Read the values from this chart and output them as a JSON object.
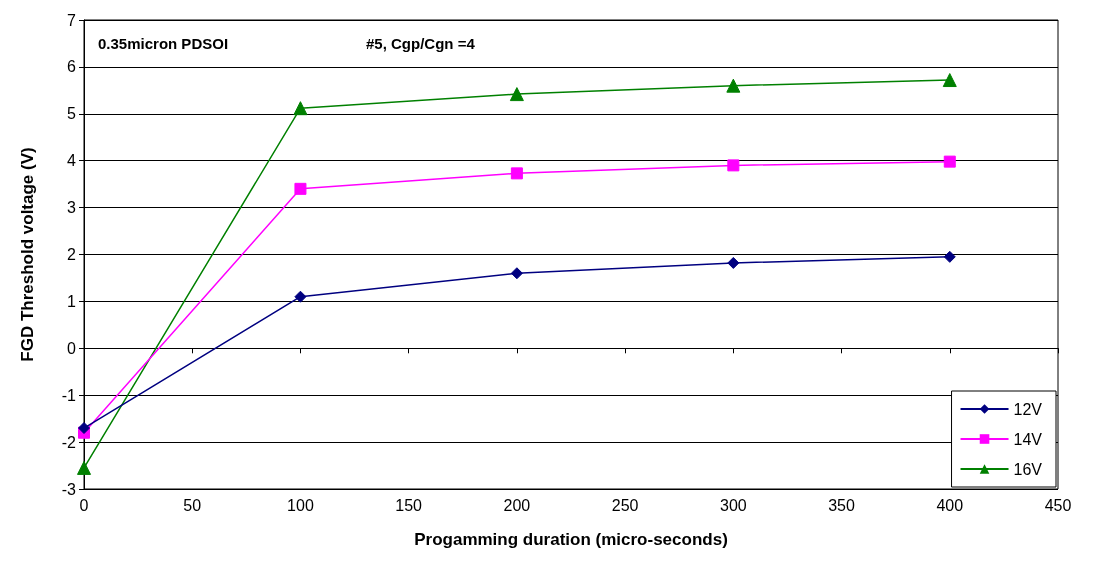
{
  "chart_data": {
    "type": "line",
    "xlabel": "Progamming duration (micro-seconds)",
    "ylabel": "FGD Threshold voltage (V)",
    "annotations": [
      "0.35micron PDSOI",
      "#5, Cgp/Cgn =4"
    ],
    "x": [
      0,
      100,
      200,
      300,
      400
    ],
    "series": [
      {
        "name": "12V",
        "color": "#000080",
        "marker": "diamond",
        "values": [
          -1.7,
          1.1,
          1.6,
          1.82,
          1.95
        ]
      },
      {
        "name": "14V",
        "color": "#ff00ff",
        "marker": "square",
        "values": [
          -1.8,
          3.4,
          3.73,
          3.9,
          3.98
        ]
      },
      {
        "name": "16V",
        "color": "#008000",
        "marker": "triangle",
        "values": [
          -2.55,
          5.12,
          5.42,
          5.6,
          5.72
        ]
      }
    ],
    "xlim": [
      0,
      450
    ],
    "xticks": [
      0,
      50,
      100,
      150,
      200,
      250,
      300,
      350,
      400,
      450
    ],
    "ylim": [
      -3,
      7
    ],
    "yticks": [
      -3,
      -2,
      -1,
      0,
      1,
      2,
      3,
      4,
      5,
      6,
      7
    ],
    "grid": "y",
    "legend": "bottom right",
    "line_style": "solid"
  }
}
